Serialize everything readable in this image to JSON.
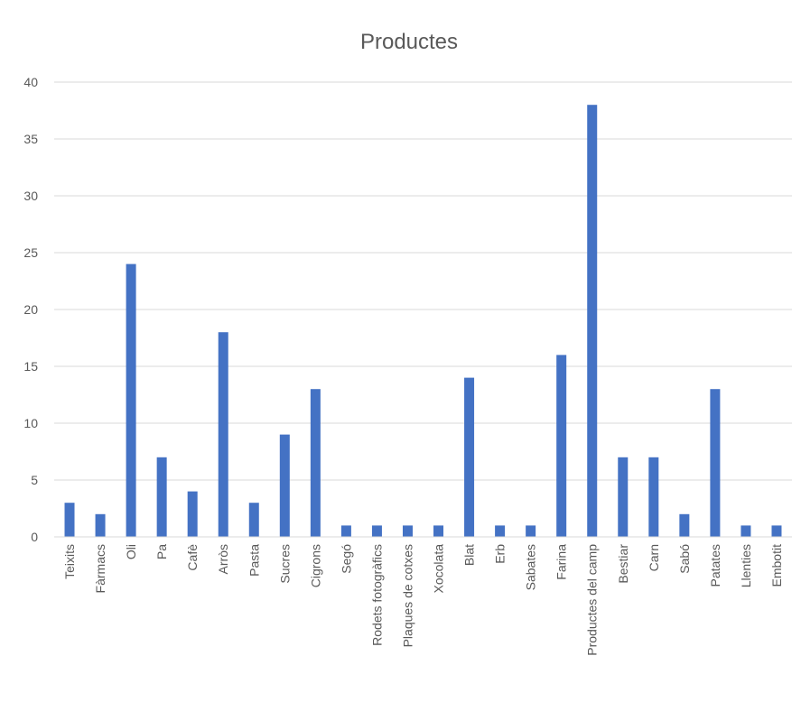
{
  "chart_data": {
    "type": "bar",
    "title": "Productes",
    "xlabel": "",
    "ylabel": "",
    "ylim": [
      0,
      40
    ],
    "yticks": [
      0,
      5,
      10,
      15,
      20,
      25,
      30,
      35,
      40
    ],
    "grid": true,
    "legend": "none",
    "bar_color": "#4472c4",
    "categories": [
      "Teixits",
      "Fàrmacs",
      "Oli",
      "Pa",
      "Cafè",
      "Arròs",
      "Pasta",
      "Sucres",
      "Cigrons",
      "Segó",
      "Rodets fotogràfics",
      "Plaques de cotxes",
      "Xocolata",
      "Blat",
      "Erb",
      "Sabates",
      "Farina",
      "Productes del camp",
      "Bestiar",
      "Carn",
      "Sabó",
      "Patates",
      "Llenties",
      "Embotit"
    ],
    "values": [
      3,
      2,
      24,
      7,
      4,
      18,
      3,
      9,
      13,
      1,
      1,
      1,
      1,
      14,
      1,
      1,
      16,
      38,
      7,
      7,
      2,
      13,
      1,
      1
    ]
  }
}
